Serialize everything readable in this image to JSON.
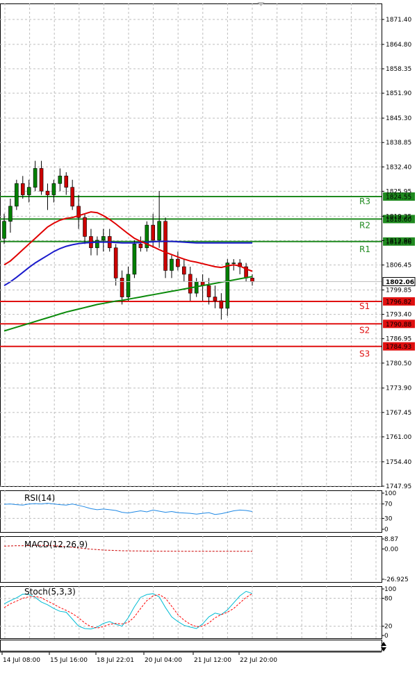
{
  "colors": {
    "bull_candle": "#008000",
    "bear_candle": "#cc0000",
    "ma_fast": "#e00000",
    "ma_mid": "#1a1acc",
    "ma_slow": "#0a8a0a",
    "resistance": "#1f8a1f",
    "support": "#e01010",
    "grid": "#bdbdbd",
    "rsi_line": "#1e88e5",
    "macd_line": "#cc0000",
    "stoch_main": "#00bcd4",
    "stoch_signal": "#ff0000",
    "current_price_bg": "#ffffff"
  },
  "chart_data": {
    "type": "candlestick",
    "price_axis": {
      "ticks": [
        "1871.40",
        "1864.80",
        "1858.35",
        "1851.90",
        "1845.30",
        "1838.85",
        "1832.40",
        "1825.95",
        "1819.35",
        "1812.90",
        "1806.45",
        "1799.85",
        "1793.40",
        "1786.95",
        "1780.50",
        "1773.90",
        "1767.45",
        "1761.00",
        "1754.40",
        "1747.95"
      ],
      "ylim": [
        1747.95,
        1871.4
      ]
    },
    "current_price": "1802.06",
    "levels": [
      {
        "name": "R3",
        "value": 1824.55,
        "label": "1824.55",
        "kind": "resistance"
      },
      {
        "name": "R2",
        "value": 1818.6,
        "label": "1818.60",
        "kind": "resistance"
      },
      {
        "name": "R1",
        "value": 1812.66,
        "label": "1812.66",
        "kind": "resistance"
      },
      {
        "name": "S1",
        "value": 1796.82,
        "label": "1796.82",
        "kind": "support"
      },
      {
        "name": "S2",
        "value": 1790.88,
        "label": "1790.88",
        "kind": "support"
      },
      {
        "name": "S3",
        "value": 1784.93,
        "label": "1784.93",
        "kind": "support"
      }
    ],
    "time_labels": [
      "14 Jul 08:00",
      "15 Jul 16:00",
      "18 Jul 22:01",
      "20 Jul 04:00",
      "21 Jul 12:00",
      "22 Jul 20:00"
    ],
    "candles": [
      {
        "o": 1813.5,
        "h": 1820,
        "l": 1812,
        "c": 1818
      },
      {
        "o": 1818,
        "h": 1824,
        "l": 1815,
        "c": 1822
      },
      {
        "o": 1822,
        "h": 1829,
        "l": 1821,
        "c": 1828
      },
      {
        "o": 1828,
        "h": 1830,
        "l": 1824,
        "c": 1825
      },
      {
        "o": 1825,
        "h": 1829,
        "l": 1823,
        "c": 1827
      },
      {
        "o": 1827,
        "h": 1834,
        "l": 1826,
        "c": 1832
      },
      {
        "o": 1832,
        "h": 1834,
        "l": 1825,
        "c": 1826
      },
      {
        "o": 1826,
        "h": 1828,
        "l": 1821,
        "c": 1825
      },
      {
        "o": 1825,
        "h": 1829,
        "l": 1823,
        "c": 1828
      },
      {
        "o": 1828,
        "h": 1832,
        "l": 1826,
        "c": 1830
      },
      {
        "o": 1830,
        "h": 1831,
        "l": 1825,
        "c": 1827
      },
      {
        "o": 1827,
        "h": 1829,
        "l": 1821,
        "c": 1822
      },
      {
        "o": 1822,
        "h": 1825,
        "l": 1816,
        "c": 1819
      },
      {
        "o": 1819,
        "h": 1820,
        "l": 1812,
        "c": 1814
      },
      {
        "o": 1814,
        "h": 1816,
        "l": 1809,
        "c": 1811
      },
      {
        "o": 1811,
        "h": 1814,
        "l": 1809,
        "c": 1813
      },
      {
        "o": 1813,
        "h": 1816,
        "l": 1810,
        "c": 1814
      },
      {
        "o": 1814,
        "h": 1816,
        "l": 1810,
        "c": 1811
      },
      {
        "o": 1811,
        "h": 1812,
        "l": 1801,
        "c": 1803
      },
      {
        "o": 1803,
        "h": 1805,
        "l": 1796,
        "c": 1798
      },
      {
        "o": 1798,
        "h": 1806,
        "l": 1797,
        "c": 1804
      },
      {
        "o": 1804,
        "h": 1813,
        "l": 1803,
        "c": 1812
      },
      {
        "o": 1812,
        "h": 1814,
        "l": 1810,
        "c": 1811
      },
      {
        "o": 1811,
        "h": 1818,
        "l": 1810,
        "c": 1817
      },
      {
        "o": 1817,
        "h": 1820,
        "l": 1811,
        "c": 1813
      },
      {
        "o": 1813,
        "h": 1826,
        "l": 1811,
        "c": 1818
      },
      {
        "o": 1818,
        "h": 1819,
        "l": 1803,
        "c": 1805
      },
      {
        "o": 1805,
        "h": 1809,
        "l": 1803,
        "c": 1808
      },
      {
        "o": 1808,
        "h": 1810,
        "l": 1805,
        "c": 1806
      },
      {
        "o": 1806,
        "h": 1808,
        "l": 1802,
        "c": 1804
      },
      {
        "o": 1804,
        "h": 1806,
        "l": 1797,
        "c": 1799
      },
      {
        "o": 1799,
        "h": 1803,
        "l": 1798,
        "c": 1802
      },
      {
        "o": 1802,
        "h": 1804,
        "l": 1797,
        "c": 1801
      },
      {
        "o": 1801,
        "h": 1803,
        "l": 1796,
        "c": 1798
      },
      {
        "o": 1798,
        "h": 1801,
        "l": 1795,
        "c": 1797
      },
      {
        "o": 1797,
        "h": 1799,
        "l": 1792,
        "c": 1795
      },
      {
        "o": 1795,
        "h": 1808,
        "l": 1793,
        "c": 1807
      },
      {
        "o": 1807,
        "h": 1808,
        "l": 1805,
        "c": 1807
      },
      {
        "o": 1807,
        "h": 1808,
        "l": 1804,
        "c": 1806
      },
      {
        "o": 1806,
        "h": 1807,
        "l": 1802,
        "c": 1803
      },
      {
        "o": 1803,
        "h": 1804,
        "l": 1801,
        "c": 1802
      }
    ],
    "ma_fast": [
      1806.5,
      1807.5,
      1809,
      1810.5,
      1812,
      1813.5,
      1815,
      1816.5,
      1817.5,
      1818.3,
      1818.8,
      1819,
      1819.5,
      1820,
      1820.5,
      1820.3,
      1819.5,
      1818.5,
      1817.3,
      1816,
      1814.7,
      1813.5,
      1812.7,
      1812,
      1811.3,
      1810.5,
      1809.8,
      1809.2,
      1808.6,
      1808,
      1807.5,
      1807.2,
      1806.8,
      1806.4,
      1806,
      1805.8,
      1806.2,
      1806.5,
      1806.2,
      1805.4,
      1804.8
    ],
    "ma_mid": [
      1801,
      1802,
      1803.2,
      1804.5,
      1805.8,
      1807,
      1808,
      1809,
      1810,
      1810.8,
      1811.4,
      1811.8,
      1812.1,
      1812.3,
      1812.4,
      1812.5,
      1812.5,
      1812.5,
      1812.4,
      1812.3,
      1812.3,
      1812.3,
      1812.4,
      1812.5,
      1812.6,
      1812.7,
      1812.7,
      1812.7,
      1812.6,
      1812.5,
      1812.4,
      1812.3,
      1812.3,
      1812.3,
      1812.3,
      1812.3,
      1812.3,
      1812.3,
      1812.3,
      1812.3,
      1812.3
    ],
    "ma_slow": [
      1789,
      1789.5,
      1790,
      1790.5,
      1791,
      1791.5,
      1792,
      1792.5,
      1793,
      1793.5,
      1794,
      1794.4,
      1794.8,
      1795.2,
      1795.6,
      1796,
      1796.3,
      1796.6,
      1796.9,
      1797.1,
      1797.4,
      1797.7,
      1798,
      1798.3,
      1798.6,
      1798.9,
      1799.2,
      1799.5,
      1799.8,
      1800.1,
      1800.4,
      1800.7,
      1801,
      1801.3,
      1801.6,
      1801.9,
      1802.2,
      1802.5,
      1802.8,
      1803.1,
      1803.4
    ],
    "rsi": {
      "label": "RSI(14)",
      "ticks": [
        "100",
        "70",
        "30",
        "0"
      ],
      "ylim": [
        0,
        100
      ],
      "values": [
        69,
        70,
        68,
        67,
        70,
        71,
        70,
        72,
        70,
        68,
        67,
        70,
        66,
        62,
        57,
        54,
        56,
        54,
        52,
        47,
        45,
        48,
        51,
        48,
        53,
        50,
        47,
        49,
        46,
        45,
        44,
        42,
        44,
        46,
        41,
        43,
        47,
        51,
        53,
        52,
        49
      ]
    },
    "macd": {
      "label": "MACD(12,26,9)",
      "ticks": [
        "8.87",
        "0.00",
        "-26.925"
      ],
      "ylim": [
        -26.925,
        8.87
      ],
      "values": [
        2.5,
        2.7,
        2.9,
        2.9,
        3.0,
        3.1,
        3.2,
        3.0,
        2.8,
        2.5,
        2.0,
        1.5,
        0.9,
        0.3,
        -0.2,
        -0.6,
        -1.0,
        -1.2,
        -1.4,
        -1.6,
        -1.7,
        -1.8,
        -1.8,
        -1.9,
        -1.9,
        -2.0,
        -2.0,
        -2.0,
        -2.1,
        -2.1,
        -2.1,
        -2.1,
        -2.1,
        -2.1,
        -2.1,
        -2.1,
        -2.1,
        -2.1,
        -2.1,
        -2.1,
        -2.1
      ]
    },
    "stoch": {
      "label": "Stoch(5,3,3)",
      "ticks": [
        "100",
        "80",
        "20",
        "0"
      ],
      "ylim": [
        0,
        100
      ],
      "main": [
        68,
        75,
        81,
        89,
        88,
        82,
        72,
        66,
        58,
        52,
        50,
        35,
        20,
        15,
        14,
        18,
        26,
        30,
        24,
        20,
        38,
        62,
        82,
        88,
        90,
        83,
        60,
        40,
        30,
        22,
        18,
        15,
        25,
        40,
        48,
        45,
        55,
        70,
        85,
        95,
        90
      ],
      "signal": [
        60,
        68,
        74,
        80,
        83,
        84,
        81,
        74,
        67,
        60,
        54,
        47,
        38,
        27,
        19,
        16,
        19,
        24,
        26,
        25,
        28,
        40,
        58,
        75,
        85,
        88,
        80,
        63,
        45,
        33,
        24,
        19,
        20,
        27,
        38,
        45,
        50,
        58,
        70,
        82,
        90
      ]
    }
  }
}
